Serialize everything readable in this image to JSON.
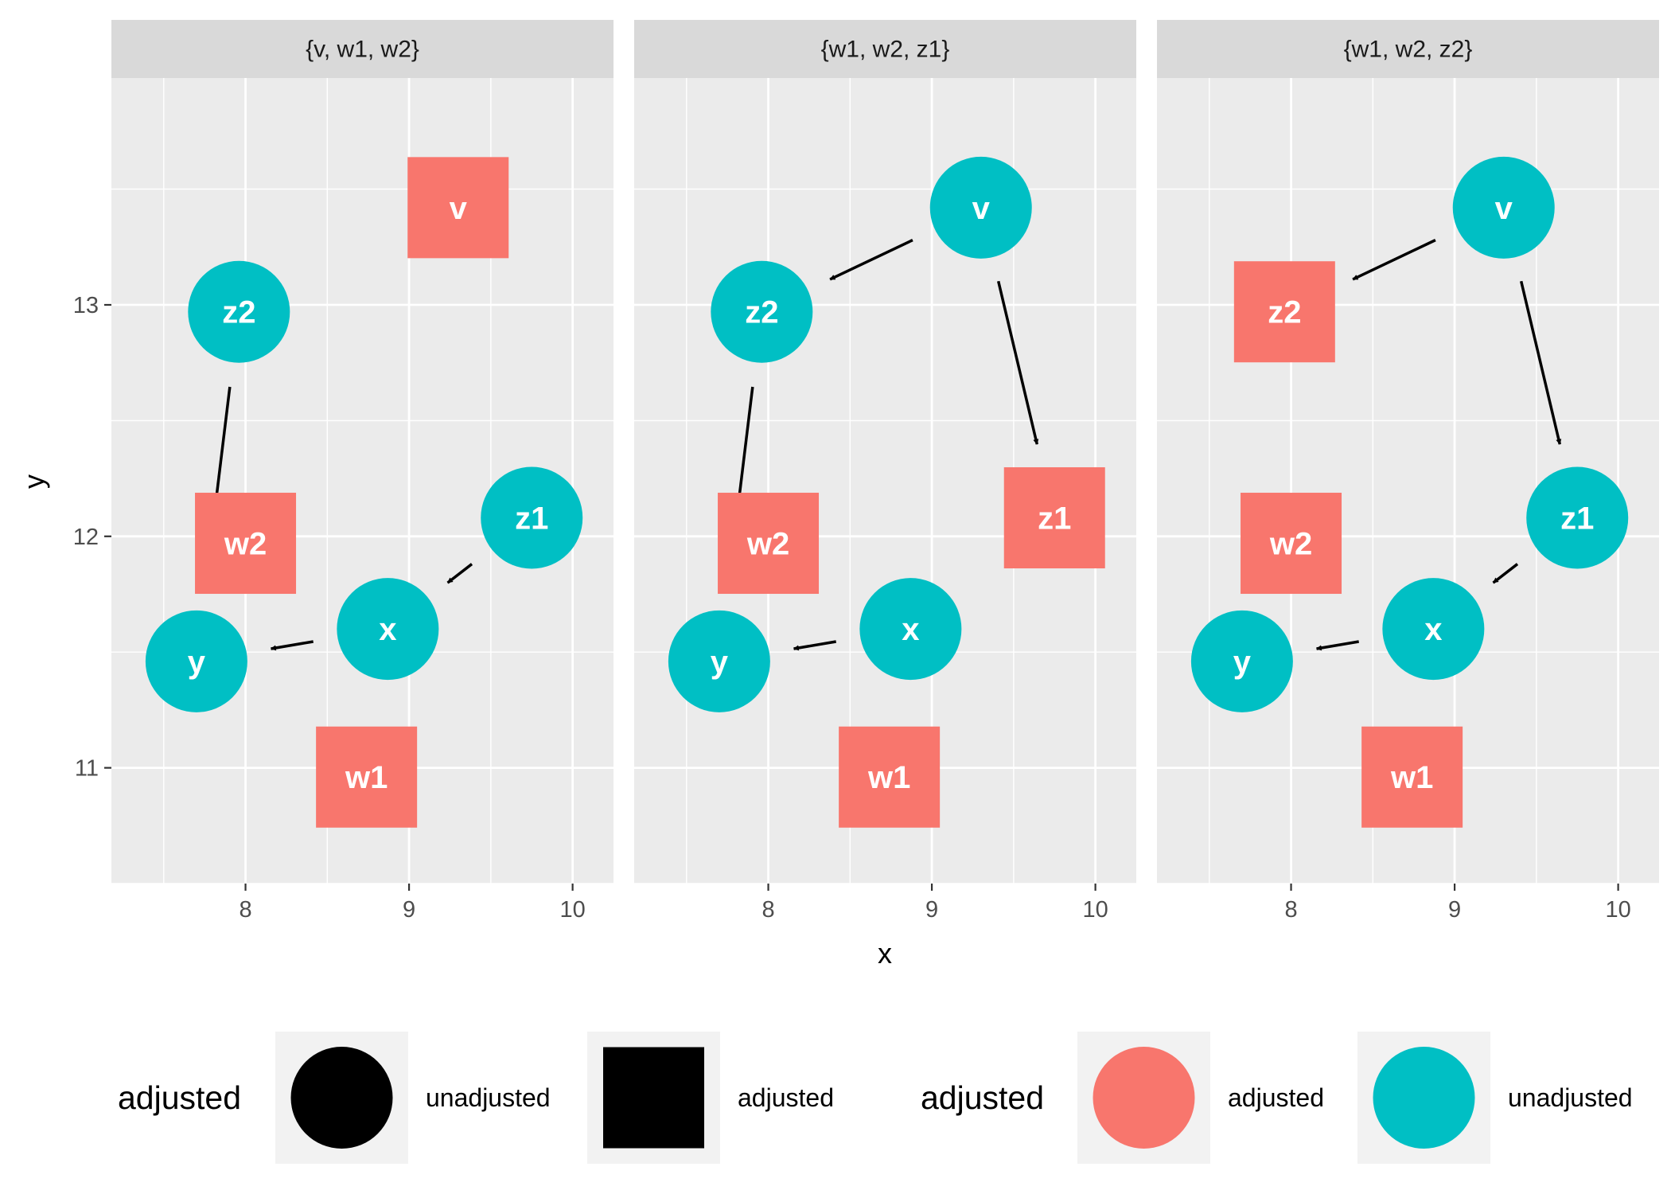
{
  "chart_data": {
    "type": "scatter",
    "xlabel": "x",
    "ylabel": "y",
    "xlim": [
      7.18,
      10.25
    ],
    "ylim": [
      10.5,
      13.98
    ],
    "x_ticks": [
      8,
      9,
      10
    ],
    "y_ticks": [
      11,
      12,
      13
    ],
    "grid": true,
    "facets": [
      {
        "title": "{v, w1, w2}",
        "nodes": [
          {
            "name": "v",
            "x": 9.3,
            "y": 13.42,
            "adjusted": "adjusted"
          },
          {
            "name": "z2",
            "x": 7.96,
            "y": 12.97,
            "adjusted": "unadjusted"
          },
          {
            "name": "w2",
            "x": 8.0,
            "y": 11.97,
            "adjusted": "adjusted"
          },
          {
            "name": "z1",
            "x": 9.75,
            "y": 12.08,
            "adjusted": "unadjusted"
          },
          {
            "name": "x",
            "x": 8.87,
            "y": 11.6,
            "adjusted": "unadjusted"
          },
          {
            "name": "y",
            "x": 7.7,
            "y": 11.46,
            "adjusted": "unadjusted"
          },
          {
            "name": "w1",
            "x": 8.74,
            "y": 10.96,
            "adjusted": "adjusted"
          }
        ],
        "edges": [
          [
            "z2",
            "y"
          ],
          [
            "z1",
            "x"
          ],
          [
            "x",
            "y"
          ]
        ]
      },
      {
        "title": "{w1, w2, z1}",
        "nodes": [
          {
            "name": "v",
            "x": 9.3,
            "y": 13.42,
            "adjusted": "unadjusted"
          },
          {
            "name": "z2",
            "x": 7.96,
            "y": 12.97,
            "adjusted": "unadjusted"
          },
          {
            "name": "w2",
            "x": 8.0,
            "y": 11.97,
            "adjusted": "adjusted"
          },
          {
            "name": "z1",
            "x": 9.75,
            "y": 12.08,
            "adjusted": "adjusted"
          },
          {
            "name": "x",
            "x": 8.87,
            "y": 11.6,
            "adjusted": "unadjusted"
          },
          {
            "name": "y",
            "x": 7.7,
            "y": 11.46,
            "adjusted": "unadjusted"
          },
          {
            "name": "w1",
            "x": 8.74,
            "y": 10.96,
            "adjusted": "adjusted"
          }
        ],
        "edges": [
          [
            "v",
            "z2"
          ],
          [
            "v",
            "z1"
          ],
          [
            "z2",
            "y"
          ],
          [
            "x",
            "y"
          ]
        ]
      },
      {
        "title": "{w1, w2, z2}",
        "nodes": [
          {
            "name": "v",
            "x": 9.3,
            "y": 13.42,
            "adjusted": "unadjusted"
          },
          {
            "name": "z2",
            "x": 7.96,
            "y": 12.97,
            "adjusted": "adjusted"
          },
          {
            "name": "w2",
            "x": 8.0,
            "y": 11.97,
            "adjusted": "adjusted"
          },
          {
            "name": "z1",
            "x": 9.75,
            "y": 12.08,
            "adjusted": "unadjusted"
          },
          {
            "name": "x",
            "x": 8.87,
            "y": 11.6,
            "adjusted": "unadjusted"
          },
          {
            "name": "y",
            "x": 7.7,
            "y": 11.46,
            "adjusted": "unadjusted"
          },
          {
            "name": "w1",
            "x": 8.74,
            "y": 10.96,
            "adjusted": "adjusted"
          }
        ],
        "edges": [
          [
            "v",
            "z2"
          ],
          [
            "v",
            "z1"
          ],
          [
            "z1",
            "x"
          ],
          [
            "x",
            "y"
          ]
        ]
      }
    ],
    "legends": [
      {
        "title": "adjusted",
        "kind": "shape",
        "entries": [
          {
            "label": "unadjusted",
            "shape": "circle"
          },
          {
            "label": "adjusted",
            "shape": "square"
          }
        ]
      },
      {
        "title": "adjusted",
        "kind": "colour",
        "entries": [
          {
            "label": "adjusted",
            "color": "#F8766D"
          },
          {
            "label": "unadjusted",
            "color": "#00BFC4"
          }
        ]
      }
    ],
    "legend_position": "bottom",
    "colors": {
      "adjusted": "#F8766D",
      "unadjusted": "#00BFC4",
      "panel": "#EBEBEB",
      "strip": "#D9D9D9",
      "grid": "#FFFFFF"
    }
  }
}
